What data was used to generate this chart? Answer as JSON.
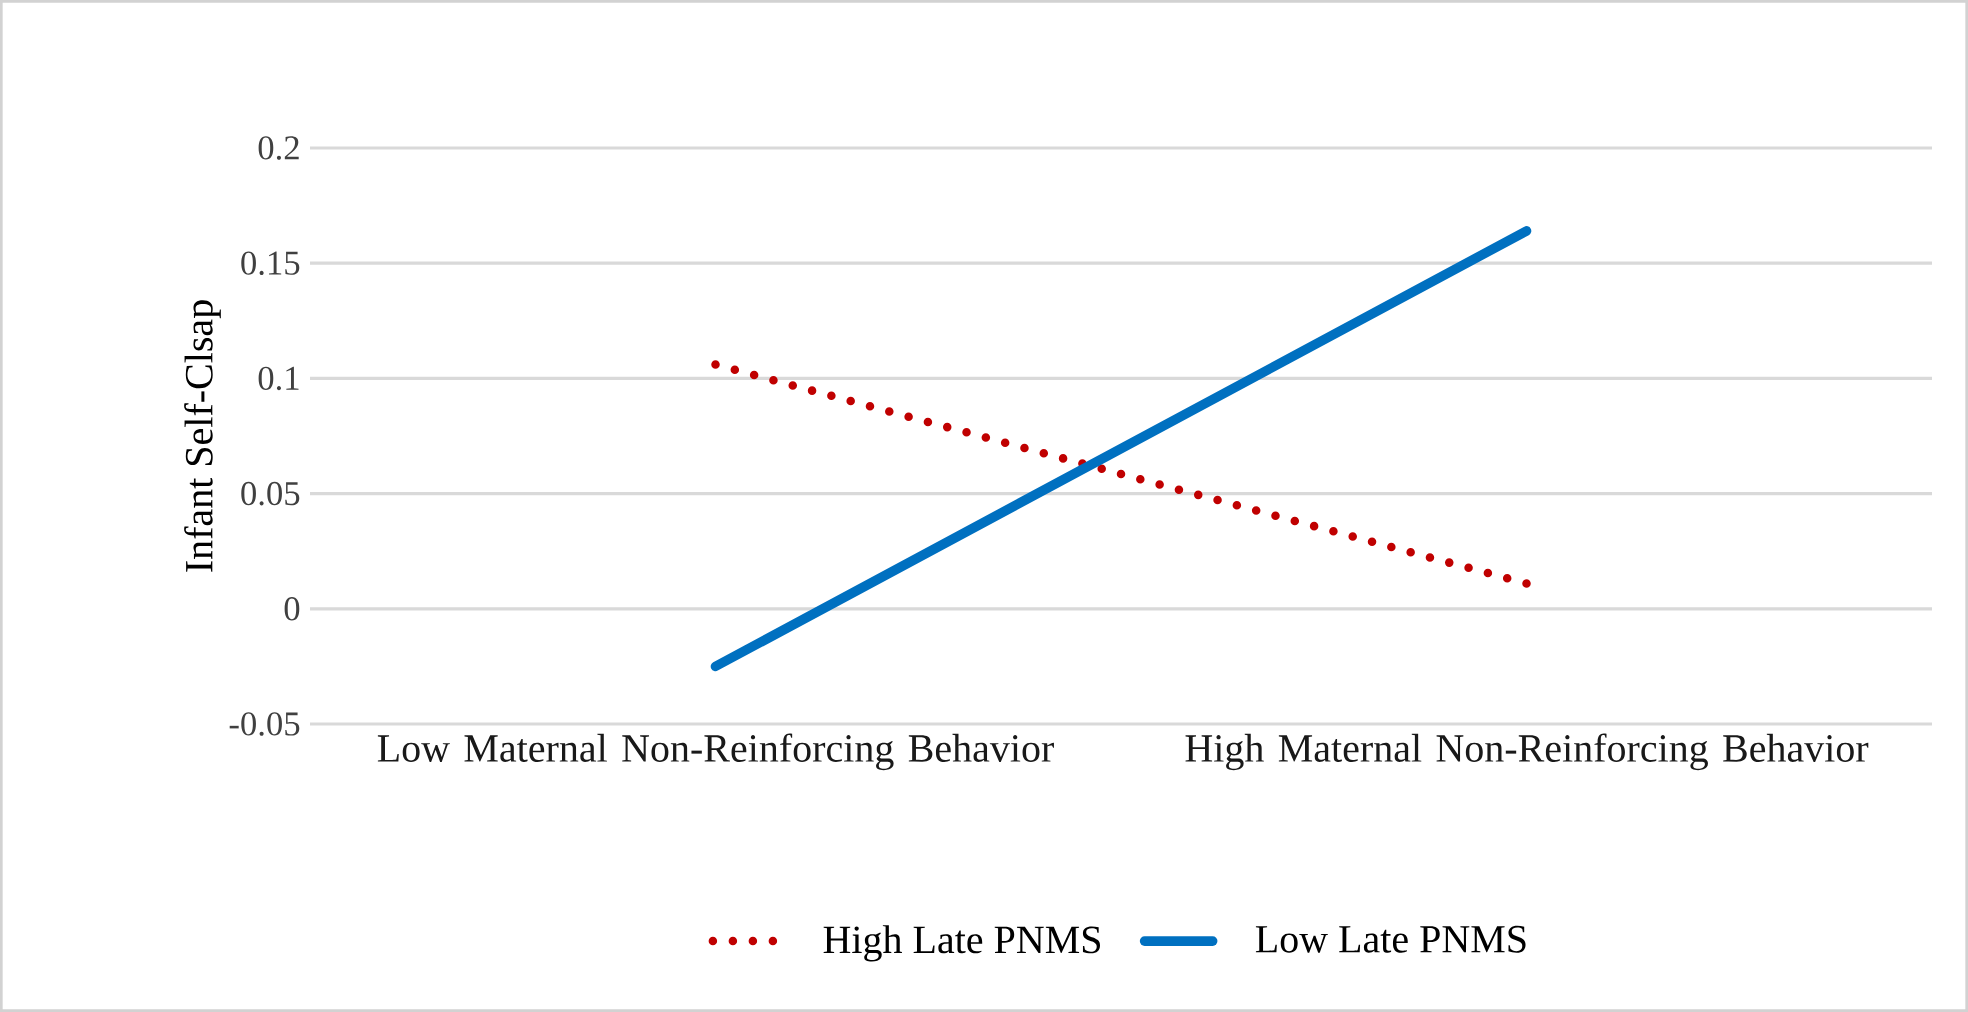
{
  "chart_data": {
    "type": "line",
    "ylabel": "Infant Self-Clsap",
    "categories": [
      "Low Maternal Non-Reinforcing Behavior",
      "High Maternal Non-Reinforcing Behavior"
    ],
    "series": [
      {
        "name": "High Late PNMS",
        "color": "#c00000",
        "line_style": "dotted",
        "values": [
          0.106,
          0.011
        ]
      },
      {
        "name": "Low Late PNMS",
        "color": "#0070c0",
        "line_style": "solid",
        "values": [
          -0.025,
          0.164
        ]
      }
    ],
    "ylim": [
      -0.05,
      0.2
    ],
    "yticks": [
      -0.05,
      0,
      0.05,
      0.1,
      0.15,
      0.2
    ],
    "grid": "y",
    "legend": "bottom",
    "marker": "none"
  }
}
